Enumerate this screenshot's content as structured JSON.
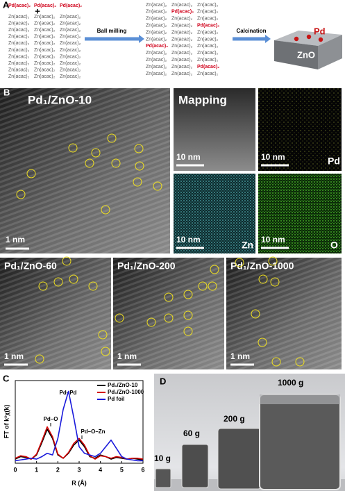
{
  "panel_a": {
    "label": "A",
    "pd_row": [
      "Pd(acac)₂",
      "Pd(acac)₂",
      "Pd(acac)₂"
    ],
    "plus": "+",
    "zn_rows": [
      [
        "Zn(acac)₂",
        "Zn(acac)₂",
        "Zn(acac)₂"
      ],
      [
        "Zn(acac)₂",
        "Zn(acac)₂",
        "Zn(acac)₂"
      ],
      [
        "Zn(acac)₂",
        "Zn(acac)₂",
        "Zn(acac)₂"
      ],
      [
        "Zn(acac)₂",
        "Zn(acac)₂",
        "Zn(acac)₂"
      ],
      [
        "Zn(acac)₂",
        "Zn(acac)₂",
        "Zn(acac)₂"
      ],
      [
        "Zn(acac)₂",
        "Zn(acac)₂",
        "Zn(acac)₂"
      ],
      [
        "Zn(acac)₂",
        "Zn(acac)₂",
        "Zn(acac)₂"
      ],
      [
        "Zn(acac)₂",
        "Zn(acac)₂",
        "Zn(acac)₂"
      ],
      [
        "Zn(acac)₂",
        "Zn(acac)₂",
        "Zn(acac)₂"
      ],
      [
        "Zn(acac)₂",
        "Zn(acac)₂",
        "Zn(acac)₂"
      ]
    ],
    "mixed_rows": [
      [
        "Zn(acac)₂",
        "Zn(acac)₂",
        "Zn(acac)₂"
      ],
      [
        "Zn(acac)₂",
        "Pd(acac)₂",
        "Zn(acac)₂"
      ],
      [
        "Zn(acac)₂",
        "Zn(acac)₂",
        "Zn(acac)₂"
      ],
      [
        "Zn(acac)₂",
        "Zn(acac)₂",
        "Pd(acac)₂"
      ],
      [
        "Zn(acac)₂",
        "Zn(acac)₂",
        "Zn(acac)₂"
      ],
      [
        "Zn(acac)₂",
        "Zn(acac)₂",
        "Zn(acac)₂"
      ],
      [
        "Pd(acac)₂",
        "Zn(acac)₂",
        "Zn(acac)₂"
      ],
      [
        "Zn(acac)₂",
        "Zn(acac)₂",
        "Zn(acac)₂"
      ],
      [
        "Zn(acac)₂",
        "Zn(acac)₂",
        "Zn(acac)₂"
      ],
      [
        "Zn(acac)₂",
        "Zn(acac)₂",
        "Pd(acac)₂"
      ],
      [
        "Zn(acac)₂",
        "Zn(acac)₂",
        "Zn(acac)₂"
      ]
    ],
    "pd_color": "#d0021b",
    "zn_color": "#555555",
    "ball_milling": "Ball milling",
    "calcination": "Calcination",
    "product_pd": "Pd",
    "product_zno": "ZnO"
  },
  "panel_b": {
    "label": "B",
    "main_title": "Pd₁/ZnO-10",
    "scale_main": "1 nm",
    "mapping_title": "Mapping",
    "map_scales": [
      "10 nm",
      "10 nm",
      "10 nm",
      "10 nm"
    ],
    "elements": [
      "Pd",
      "Zn",
      "O"
    ],
    "series_titles": [
      "Pd₁/ZnO-60",
      "Pd₁/ZnO-200",
      "Pd₁/ZnO-1000"
    ],
    "series_scales": [
      "1 nm",
      "1 nm",
      "1 nm"
    ]
  },
  "chart_data": {
    "type": "line",
    "label": "C",
    "x_label": "R (Å)",
    "y_label": "FT of k²χ(k)",
    "x": [
      0,
      0.25,
      0.5,
      0.75,
      1,
      1.25,
      1.5,
      1.75,
      2,
      2.25,
      2.5,
      2.75,
      3,
      3.25,
      3.5,
      3.75,
      4,
      4.25,
      4.5,
      4.75,
      5,
      5.25,
      5.5,
      5.75,
      6
    ],
    "series": [
      {
        "name": "Pd₁/ZnO-10",
        "color": "#000000",
        "values": [
          0.05,
          0.08,
          0.07,
          0.05,
          0.1,
          0.25,
          0.41,
          0.3,
          0.1,
          0.06,
          0.12,
          0.22,
          0.28,
          0.2,
          0.08,
          0.06,
          0.1,
          0.08,
          0.05,
          0.07,
          0.06,
          0.05,
          0.06,
          0.05,
          0.04
        ]
      },
      {
        "name": "Pd₁/ZnO-1000",
        "color": "#d40000",
        "values": [
          0.06,
          0.09,
          0.08,
          0.05,
          0.11,
          0.27,
          0.44,
          0.32,
          0.11,
          0.06,
          0.13,
          0.24,
          0.3,
          0.22,
          0.09,
          0.05,
          0.09,
          0.08,
          0.06,
          0.08,
          0.07,
          0.05,
          0.06,
          0.06,
          0.05
        ]
      },
      {
        "name": "Pd foil",
        "color": "#1a1adb",
        "values": [
          0.03,
          0.04,
          0.05,
          0.06,
          0.05,
          0.08,
          0.12,
          0.1,
          0.3,
          0.65,
          0.87,
          0.55,
          0.2,
          0.12,
          0.1,
          0.08,
          0.12,
          0.2,
          0.28,
          0.18,
          0.08,
          0.05,
          0.04,
          0.03,
          0.03
        ]
      }
    ],
    "xlim": [
      0,
      6
    ],
    "xticks": [
      0,
      1,
      2,
      3,
      4,
      5,
      6
    ],
    "ylim": [
      0,
      1
    ],
    "annotations": [
      "Pd–O",
      "Pd–Pd",
      "Pd–O–Zn"
    ],
    "legend": "upper right"
  },
  "panel_d": {
    "label": "D",
    "masses": [
      "10 g",
      "60 g",
      "200 g",
      "1000 g"
    ]
  }
}
